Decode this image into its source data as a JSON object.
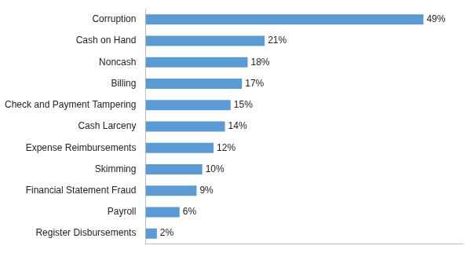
{
  "chart_data": {
    "type": "bar",
    "orientation": "horizontal",
    "categories": [
      "Corruption",
      "Cash on Hand",
      "Noncash",
      "Billing",
      "Check and Payment Tampering",
      "Cash Larceny",
      "Expense Reimbursements",
      "Skimming",
      "Financial Statement Fraud",
      "Payroll",
      "Register Disbursements"
    ],
    "values": [
      49,
      21,
      18,
      17,
      15,
      14,
      12,
      10,
      9,
      6,
      2
    ],
    "value_labels": [
      "49%",
      "21%",
      "18%",
      "17%",
      "15%",
      "14%",
      "12%",
      "10%",
      "9%",
      "6%",
      "2%"
    ],
    "color": "#5b9bd5",
    "xlim": [
      0,
      56
    ],
    "grid": false,
    "data_labels": true,
    "tick_labels": "y"
  }
}
